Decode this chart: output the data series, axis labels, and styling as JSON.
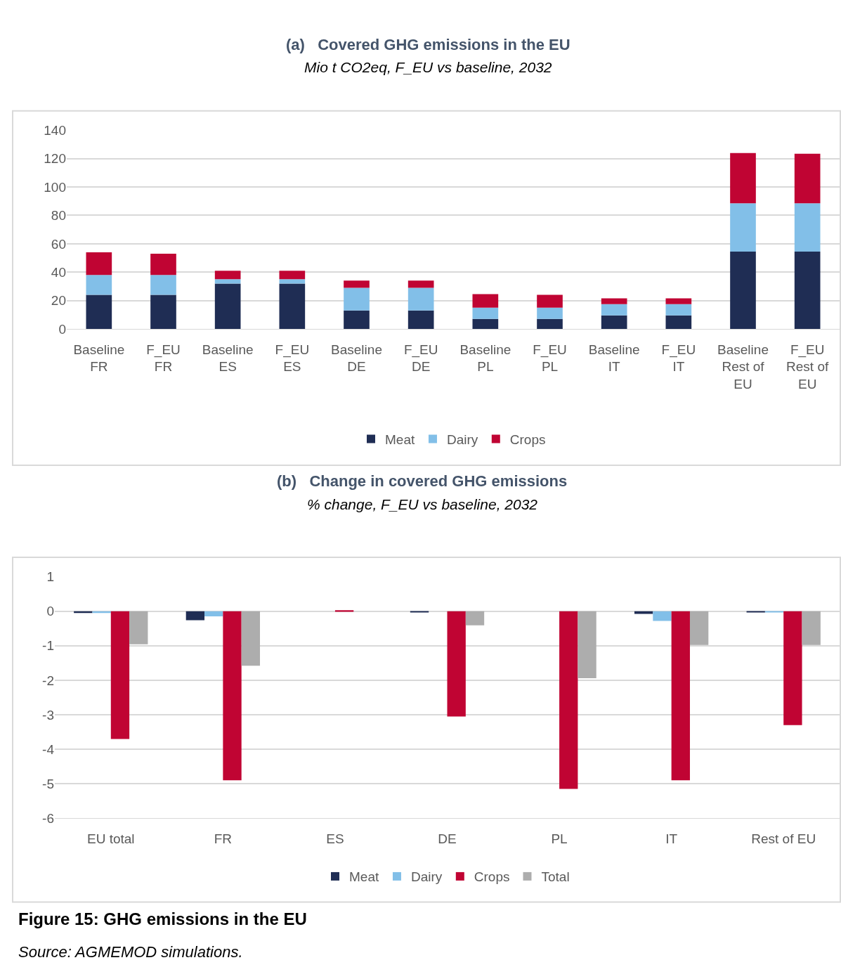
{
  "chart_data": [
    {
      "type": "bar",
      "title": "(a)   Covered GHG emissions in the EU",
      "subtitle": "Mio t CO2eq, F_EU vs baseline, 2032",
      "stacked": true,
      "grid": "y",
      "legend": "bottom",
      "categories": [
        "Baseline\nFR",
        "F_EU\nFR",
        "Baseline\nES",
        "F_EU\nES",
        "Baseline\nDE",
        "F_EU\nDE",
        "Baseline\nPL",
        "F_EU\nPL",
        "Baseline\nIT",
        "F_EU\nIT",
        "Baseline\nRest of\nEU",
        "F_EU\nRest of\nEU"
      ],
      "ylim": [
        0,
        140
      ],
      "yticks": [
        0,
        20,
        40,
        60,
        80,
        100,
        120,
        140
      ],
      "series": [
        {
          "name": "Meat",
          "color": "#1f2d54",
          "values": [
            24,
            24,
            32,
            32,
            13,
            13,
            7,
            7,
            9.5,
            9.5,
            54.5,
            54.5
          ]
        },
        {
          "name": "Dairy",
          "color": "#82bfe8",
          "values": [
            14,
            14,
            3,
            3,
            16,
            16,
            8,
            8,
            8,
            8,
            34,
            34
          ]
        },
        {
          "name": "Crops",
          "color": "#c00433",
          "values": [
            16,
            15,
            6,
            6,
            5,
            5,
            9.5,
            9,
            4,
            4,
            35.5,
            35
          ]
        }
      ]
    },
    {
      "type": "bar",
      "title": "(b)   Change in covered GHG emissions",
      "subtitle": "% change, F_EU vs baseline, 2032",
      "grid": "y",
      "legend": "bottom",
      "categories": [
        "EU total",
        "FR",
        "ES",
        "DE",
        "PL",
        "IT",
        "Rest of EU"
      ],
      "ylim": [
        -6,
        1
      ],
      "yticks": [
        -6,
        -5,
        -4,
        -3,
        -2,
        -1,
        0,
        1
      ],
      "annotations": [
        "Figure 15: GHG emissions in the EU",
        "Source: AGMEMOD simulations."
      ],
      "series": [
        {
          "name": "Meat",
          "color": "#1f2d54",
          "values": [
            -0.05,
            -0.26,
            0,
            -0.03,
            0,
            -0.08,
            -0.03
          ]
        },
        {
          "name": "Dairy",
          "color": "#82bfe8",
          "values": [
            -0.05,
            -0.15,
            0,
            0,
            0,
            -0.28,
            -0.02
          ]
        },
        {
          "name": "Crops",
          "color": "#c00433",
          "values": [
            -3.7,
            -4.9,
            0.03,
            -3.05,
            -5.15,
            -4.9,
            -3.3
          ]
        },
        {
          "name": "Total",
          "color": "#adadad",
          "values": [
            -0.96,
            -1.58,
            0,
            -0.41,
            -1.94,
            -0.98,
            -0.98
          ]
        }
      ]
    }
  ]
}
